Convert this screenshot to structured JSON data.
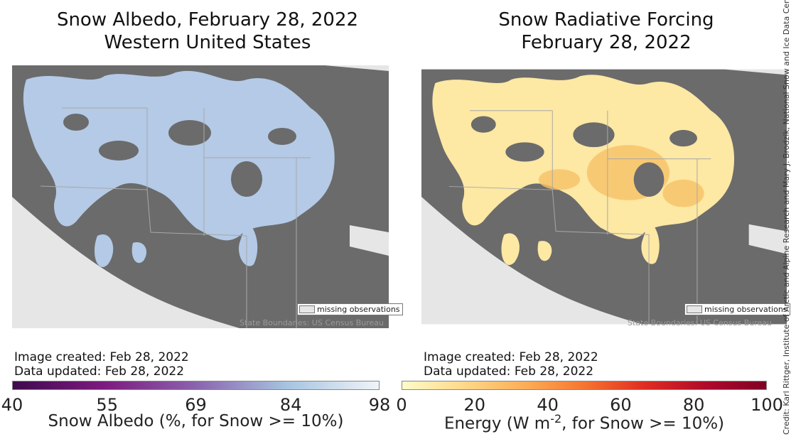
{
  "left_panel": {
    "title_line1": "Snow Albedo, February 28, 2022",
    "title_line2": "Western United States",
    "legend_label": "missing observations",
    "source": "State Boundaries: US Census Bureau",
    "image_created": "Image created: Feb 28, 2022",
    "data_updated": "Data updated: Feb 28, 2022",
    "colorbar": {
      "ticks": [
        "40",
        "55",
        "69",
        "84",
        "98"
      ],
      "min": 40,
      "max": 98,
      "colors": [
        "#3f0a4d",
        "#7d1a80",
        "#8a63ae",
        "#a7c4e0",
        "#f0f4f8"
      ],
      "label": "Snow Albedo (%, for Snow >= 10%)"
    },
    "snow_color": "#b4cae6"
  },
  "right_panel": {
    "title_line1": "Snow Radiative Forcing",
    "title_line2": "February 28, 2022",
    "legend_label": "missing observations",
    "source": "State Boundaries: US Census Bureau",
    "image_created": "Image created: Feb 28, 2022",
    "data_updated": "Data updated: Feb 28, 2022",
    "colorbar": {
      "ticks": [
        "0",
        "20",
        "40",
        "60",
        "80",
        "100"
      ],
      "min": 0,
      "max": 100,
      "colors": [
        "#fffbc8",
        "#fed98a",
        "#fdae58",
        "#f6752f",
        "#e02c21",
        "#b00a2a",
        "#800026"
      ],
      "label_main": "Energy (W m",
      "label_sup": "-2",
      "label_tail": ", for Snow >= 10%)"
    },
    "snow_color": "#fde8a4"
  },
  "credit": "Credit: Karl Rittger, Institute of Arctic and Alpine Research and Mary J. Brodzik, National Snow and Ice Data Center",
  "colors": {
    "land": "#6b6b6b",
    "missing": "#e6e6e6",
    "borders": "#a8a8a8"
  }
}
